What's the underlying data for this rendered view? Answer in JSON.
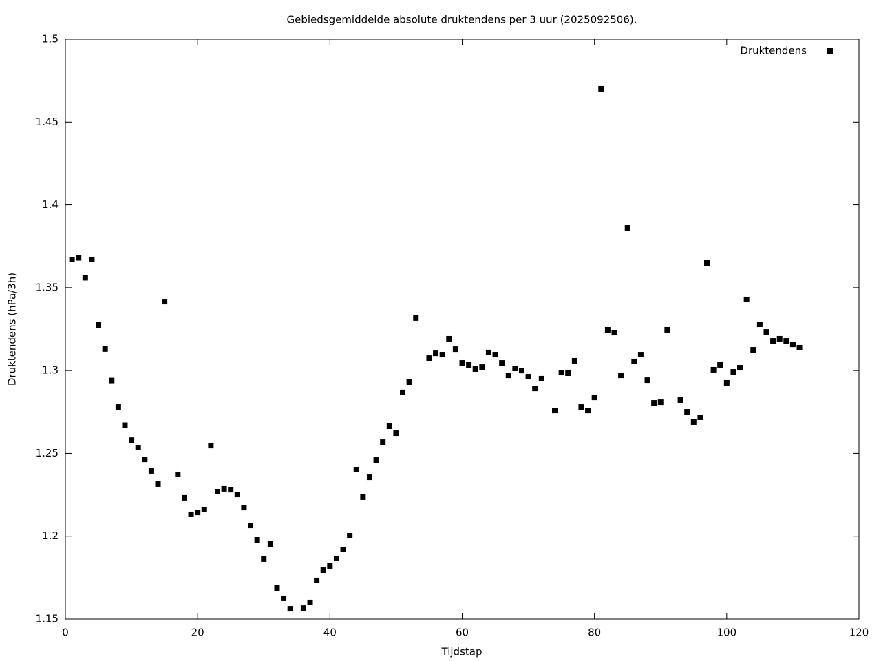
{
  "chart_data": {
    "type": "scatter",
    "title": "Gebiedsgemiddelde absolute druktendens per 3 uur (2025092506).",
    "x_label": "Tijdstap",
    "y_label": "Druktendens (hPa/3h)",
    "legend": "top-right",
    "series": [
      {
        "name": "Druktendens",
        "color": "#000000",
        "x": [
          1,
          2,
          3,
          4,
          5,
          6,
          7,
          8,
          9,
          10,
          11,
          12,
          13,
          14,
          15,
          17,
          18,
          19,
          20,
          21,
          22,
          23,
          24,
          25,
          26,
          27,
          28,
          29,
          30,
          31,
          32,
          33,
          34,
          36,
          37,
          38,
          39,
          40,
          41,
          42,
          43,
          44,
          45,
          46,
          47,
          48,
          49,
          50,
          51,
          52,
          53,
          55,
          56,
          57,
          58,
          59,
          60,
          61,
          62,
          63,
          64,
          65,
          66,
          67,
          68,
          69,
          70,
          71,
          72,
          74,
          75,
          76,
          77,
          78,
          79,
          80,
          81,
          82,
          83,
          84,
          85,
          86,
          87,
          88,
          89,
          90,
          91,
          93,
          94,
          95,
          96,
          97,
          98,
          99,
          100,
          101,
          102,
          103,
          104,
          105,
          106,
          107,
          108,
          109,
          110,
          111
        ],
        "values": [
          1.367,
          1.368,
          1.356,
          1.367,
          1.3275,
          1.313,
          1.294,
          1.278,
          1.267,
          1.258,
          1.2535,
          1.2464,
          1.2394,
          1.2315,
          1.3416,
          1.2373,
          1.2232,
          1.2132,
          1.2144,
          1.2161,
          1.2547,
          1.2269,
          1.2286,
          1.2281,
          1.2252,
          1.2173,
          1.2065,
          1.1978,
          1.1862,
          1.1953,
          1.1687,
          1.1625,
          1.1562,
          1.1566,
          1.16,
          1.1733,
          1.1795,
          1.182,
          1.1866,
          1.192,
          1.2003,
          1.2402,
          1.2236,
          1.2356,
          1.246,
          1.2568,
          1.2664,
          1.2622,
          1.2868,
          1.293,
          1.3317,
          1.3075,
          1.3104,
          1.3096,
          1.3192,
          1.3129,
          1.3046,
          1.3034,
          1.3009,
          1.3021,
          1.3109,
          1.3096,
          1.3046,
          1.2971,
          1.3013,
          1.3,
          1.2963,
          1.2892,
          1.2951,
          1.2759,
          1.2988,
          1.2984,
          1.3059,
          1.278,
          1.2759,
          1.2838,
          1.4701,
          1.3246,
          1.3229,
          1.2971,
          1.3861,
          1.3055,
          1.3096,
          1.2942,
          1.2805,
          1.2809,
          1.3246,
          1.2822,
          1.2751,
          1.2689,
          1.2718,
          1.3649,
          1.3005,
          1.3034,
          1.2926,
          1.2992,
          1.3017,
          1.3429,
          1.3125,
          1.3279,
          1.3233,
          1.3179,
          1.3192,
          1.3179,
          1.3158,
          1.3138
        ]
      }
    ],
    "xlim": [
      0,
      120
    ],
    "xticks": [
      0,
      20,
      40,
      60,
      80,
      100,
      120
    ],
    "ylim": [
      1.15,
      1.5
    ],
    "yticks": [
      1.15,
      1.2,
      1.25,
      1.3,
      1.35,
      1.4,
      1.45,
      1.5
    ]
  }
}
